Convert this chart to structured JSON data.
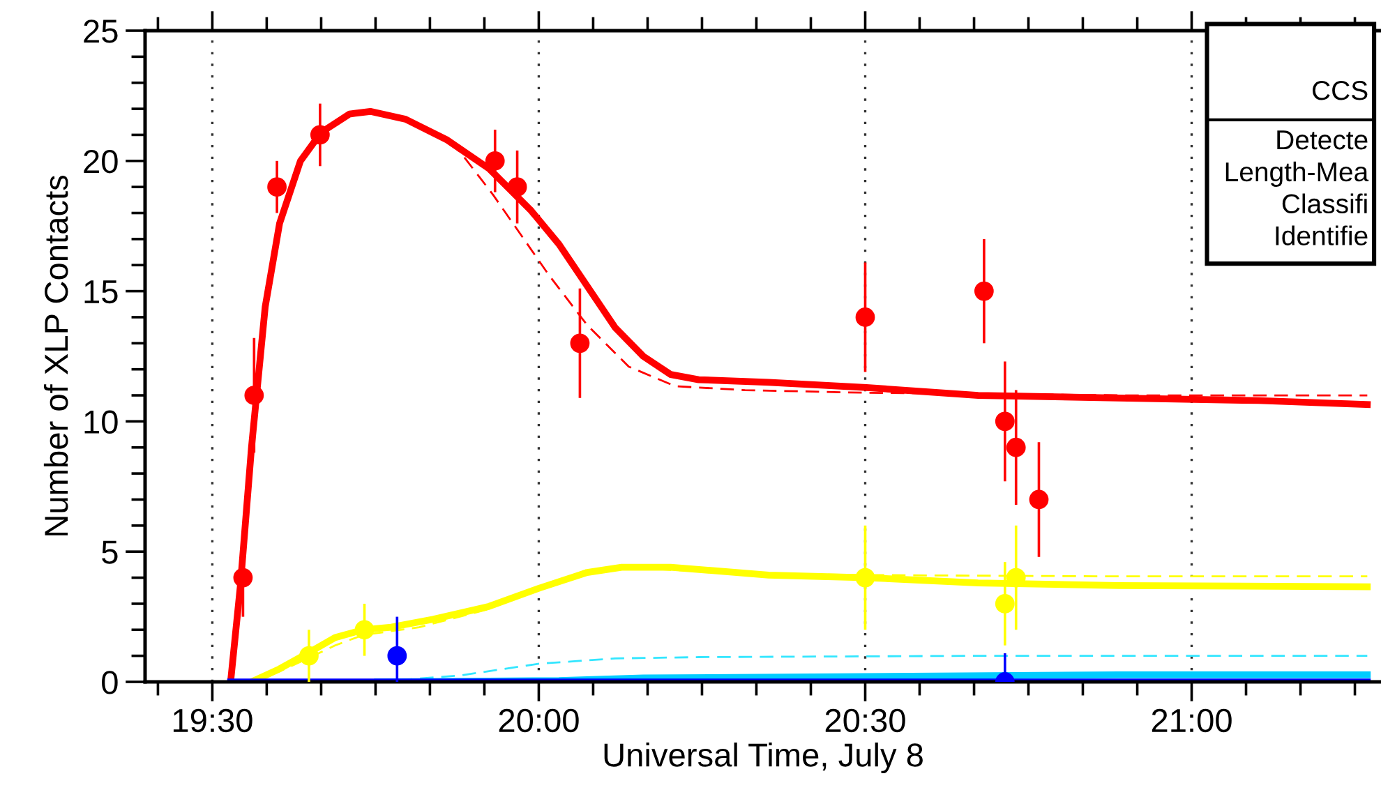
{
  "chart_data": {
    "type": "line",
    "xlabel": "Universal Time, July 8",
    "ylabel": "Number of XLP Contacts",
    "xlim": [
      19.397,
      21.29
    ],
    "ylim": [
      0,
      25
    ],
    "xticks": [
      {
        "value": 19.4167,
        "label": null
      },
      {
        "value": 19.5,
        "label": "19:30"
      },
      {
        "value": 19.5833,
        "label": null
      },
      {
        "value": 19.6667,
        "label": null
      },
      {
        "value": 19.75,
        "label": null
      },
      {
        "value": 19.8333,
        "label": null
      },
      {
        "value": 19.9167,
        "label": null
      },
      {
        "value": 20.0,
        "label": "20:00"
      },
      {
        "value": 20.0833,
        "label": null
      },
      {
        "value": 20.1667,
        "label": null
      },
      {
        "value": 20.25,
        "label": null
      },
      {
        "value": 20.3333,
        "label": null
      },
      {
        "value": 20.4167,
        "label": null
      },
      {
        "value": 20.5,
        "label": "20:30"
      },
      {
        "value": 20.5833,
        "label": null
      },
      {
        "value": 20.6667,
        "label": null
      },
      {
        "value": 20.75,
        "label": null
      },
      {
        "value": 20.8333,
        "label": null
      },
      {
        "value": 20.9167,
        "label": null
      },
      {
        "value": 21.0,
        "label": "21:00"
      },
      {
        "value": 21.0833,
        "label": null
      },
      {
        "value": 21.1667,
        "label": null
      },
      {
        "value": 21.25,
        "label": null
      }
    ],
    "yticks": [
      0,
      {
        "value": 1,
        "label": null
      },
      {
        "value": 2,
        "label": null
      },
      {
        "value": 3,
        "label": null
      },
      {
        "value": 4,
        "label": null
      },
      5,
      {
        "value": 6,
        "label": null
      },
      {
        "value": 7,
        "label": null
      },
      {
        "value": 8,
        "label": null
      },
      {
        "value": 9,
        "label": null
      },
      10,
      {
        "value": 11,
        "label": null
      },
      {
        "value": 12,
        "label": null
      },
      {
        "value": 13,
        "label": null
      },
      {
        "value": 14,
        "label": null
      },
      15,
      {
        "value": 16,
        "label": null
      },
      {
        "value": 17,
        "label": null
      },
      {
        "value": 18,
        "label": null
      },
      {
        "value": 19,
        "label": null
      },
      20,
      {
        "value": 21,
        "label": null
      },
      {
        "value": 22,
        "label": null
      },
      {
        "value": 23,
        "label": null
      },
      {
        "value": 24,
        "label": null
      },
      25
    ],
    "grid": "x",
    "series": [
      {
        "color": "#ff0000",
        "line_style": "dashed",
        "x": [
          19.528,
          19.543,
          19.56,
          19.581,
          19.603,
          19.635,
          19.667,
          19.71,
          19.742,
          19.796,
          19.86,
          19.881,
          19.93,
          20.016,
          20.074,
          20.138,
          20.209,
          20.316,
          20.5,
          20.7,
          20.9,
          21.269
        ],
        "values": [
          0,
          3.7,
          9,
          14.4,
          17.6,
          20,
          21.1,
          21.8,
          21.9,
          21.6,
          20.8,
          20.3,
          18.7,
          15.6,
          13.7,
          12.1,
          11.35,
          11.2,
          11.1,
          11.05,
          11.0,
          11.0
        ]
      },
      {
        "color": "#ff0000",
        "x": [
          19.528,
          19.543,
          19.56,
          19.581,
          19.603,
          19.635,
          19.667,
          19.71,
          19.742,
          19.796,
          19.86,
          19.924,
          19.988,
          20.031,
          20.074,
          20.117,
          20.16,
          20.202,
          20.245,
          20.352,
          20.502,
          20.673,
          20.888,
          21.102,
          21.269
        ],
        "values": [
          0,
          3.7,
          9,
          14.4,
          17.6,
          20,
          21.1,
          21.8,
          21.9,
          21.6,
          20.8,
          19.7,
          18.1,
          16.8,
          15.2,
          13.6,
          12.5,
          11.8,
          11.6,
          11.5,
          11.3,
          11.0,
          10.9,
          10.8,
          10.65
        ]
      },
      {
        "color": "#ffff00",
        "line_style": "dashed",
        "x": [
          19.56,
          19.603,
          19.646,
          19.688,
          19.731,
          19.817,
          19.924,
          20.001,
          20.074,
          20.138,
          20.202,
          20.352,
          20.502,
          20.888,
          21.269
        ],
        "values": [
          0,
          0.4,
          0.9,
          1.4,
          1.8,
          2.1,
          2.8,
          3.6,
          4.3,
          4.4,
          4.3,
          4.15,
          4.1,
          4.05,
          4.05
        ]
      },
      {
        "color": "#ffff00",
        "x": [
          19.56,
          19.603,
          19.646,
          19.688,
          19.731,
          19.774,
          19.838,
          19.924,
          20.001,
          20.074,
          20.127,
          20.202,
          20.352,
          20.502,
          20.673,
          20.888,
          21.269
        ],
        "values": [
          0,
          0.5,
          1.1,
          1.7,
          2.0,
          2.1,
          2.4,
          2.9,
          3.6,
          4.2,
          4.4,
          4.4,
          4.1,
          4.0,
          3.8,
          3.7,
          3.65
        ]
      },
      {
        "color": "#33e6ff",
        "line_style": "dashed",
        "x": [
          19.753,
          19.881,
          20.001,
          20.117,
          20.245,
          20.673,
          21.269
        ],
        "values": [
          0,
          0.25,
          0.7,
          0.9,
          0.95,
          1.0,
          1.0
        ]
      },
      {
        "color": "#00ccff",
        "x": [
          19.753,
          20.031,
          20.16,
          20.459,
          20.888,
          21.269
        ],
        "values": [
          0,
          0.05,
          0.15,
          0.2,
          0.27,
          0.27
        ]
      },
      {
        "color": "#0000ff",
        "x": [
          19.528,
          21.269
        ],
        "values": [
          0,
          0
        ]
      },
      {
        "type": "scatter",
        "color": "#ff0000",
        "marker": "circle",
        "x": [
          19.547,
          19.564,
          19.599,
          19.665,
          19.933,
          19.967,
          20.063,
          20.5,
          20.682,
          20.714,
          20.731,
          20.766
        ],
        "values": [
          4,
          11,
          19,
          21,
          20,
          19,
          13,
          14,
          15,
          10,
          9,
          7
        ],
        "errors": [
          1.5,
          2.2,
          1.0,
          1.2,
          1.2,
          1.4,
          2.1,
          2.1,
          2.0,
          2.3,
          2.2,
          2.2
        ]
      },
      {
        "type": "scatter",
        "color": "#ffff00",
        "marker": "circle",
        "x": [
          19.648,
          19.733,
          20.5,
          20.714,
          20.731
        ],
        "values": [
          1,
          2,
          4,
          3,
          4
        ],
        "errors": [
          1.0,
          1.0,
          2.0,
          1.6,
          2.0
        ]
      },
      {
        "type": "scatter",
        "color": "#0000ff",
        "marker": "circle",
        "x": [
          19.783,
          20.714
        ],
        "values": [
          1,
          0
        ],
        "errors": [
          1.5,
          1.1
        ]
      }
    ],
    "annotations": [
      "CCS",
      "Detecte",
      "Length-Mea",
      "Classifi",
      "Identifie"
    ]
  }
}
